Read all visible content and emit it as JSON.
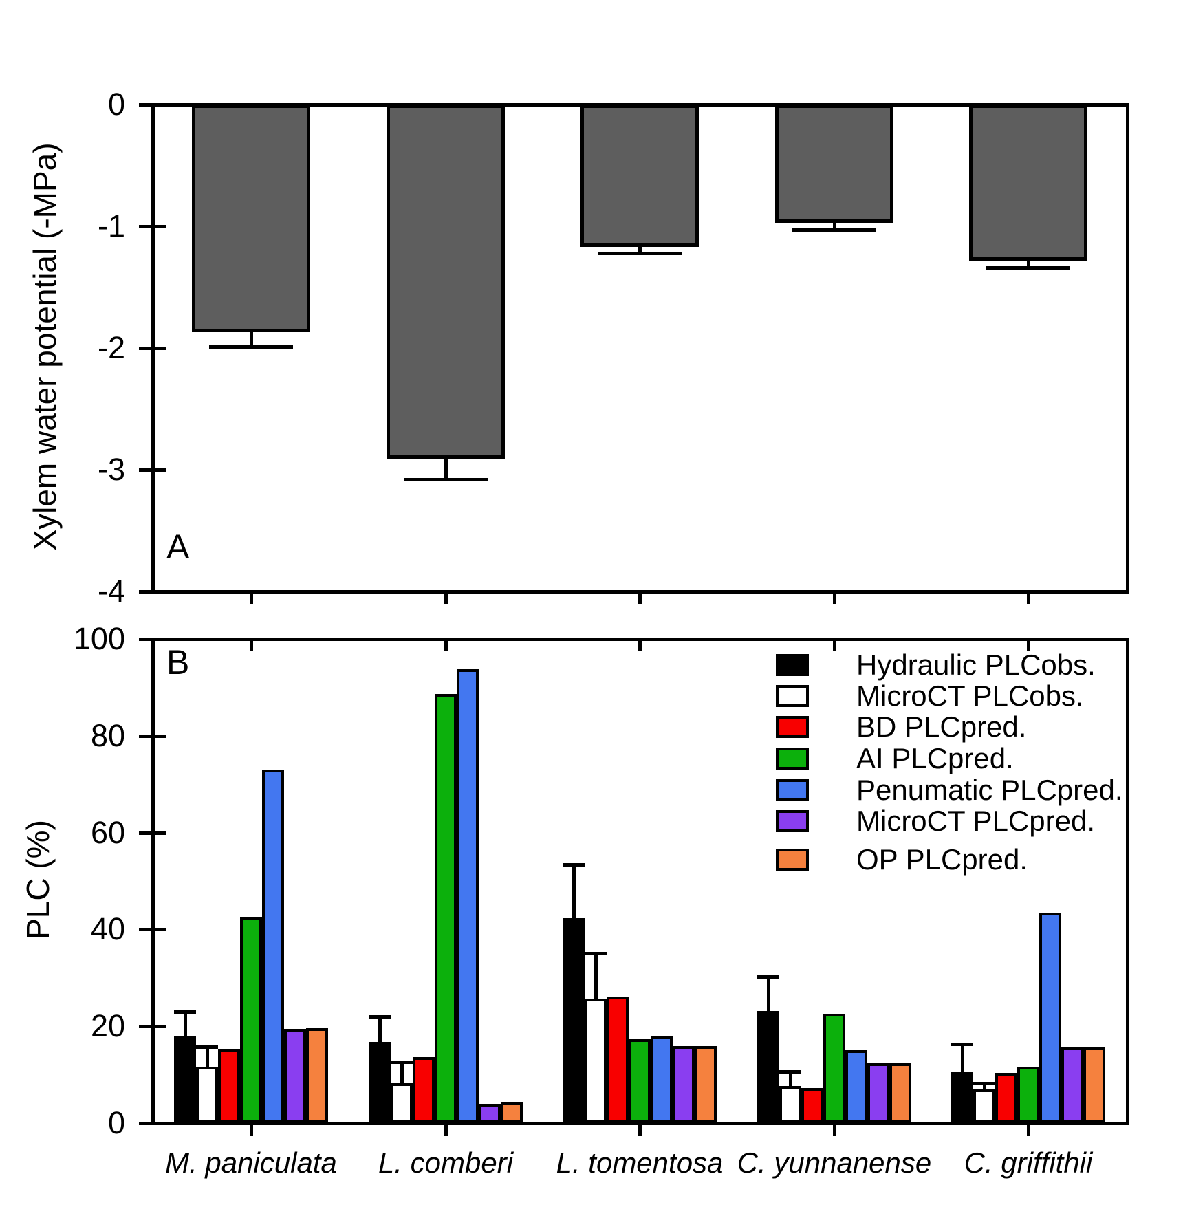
{
  "chart_data": [
    {
      "id": "A",
      "type": "bar",
      "panel_label": "A",
      "ylabel": "Xylem water potential (-MPa)",
      "ylim": [
        0,
        -4
      ],
      "yticks": [
        0,
        -1,
        -2,
        -3,
        -4
      ],
      "grid": false,
      "categories": [
        "M. paniculata",
        "L. comberi",
        "L. tomentosa",
        "C. yunnanense",
        "C. griffithii"
      ],
      "categories_shown": false,
      "series": [
        {
          "name": "Xylem water potential",
          "color": "#5E5E5E",
          "values": [
            -1.87,
            -2.91,
            -1.17,
            -0.97,
            -1.28
          ],
          "errors": [
            0.12,
            0.17,
            0.05,
            0.06,
            0.06
          ],
          "error_direction": "down"
        }
      ]
    },
    {
      "id": "B",
      "type": "grouped-bar",
      "panel_label": "B",
      "ylabel": "PLC (%)",
      "ylim": [
        0,
        100
      ],
      "yticks": [
        0,
        20,
        40,
        60,
        80,
        100
      ],
      "grid": false,
      "legend_position": "top-right",
      "categories": [
        "M. paniculata",
        "L. comberi",
        "L. tomentosa",
        "C. yunnanense",
        "C. griffithii"
      ],
      "categories_shown": true,
      "series": [
        {
          "name": "Hydraulic PLCobs.",
          "color": "#000000",
          "values": [
            18.0,
            16.7,
            42.4,
            23.1,
            10.7
          ],
          "errors": [
            5.0,
            5.3,
            11.0,
            7.2,
            5.7
          ],
          "error_direction": "up"
        },
        {
          "name": "MicroCT PLCobs.",
          "color": "#FFFFFF",
          "values": [
            11.6,
            8.3,
            25.7,
            7.6,
            6.9
          ],
          "errors": [
            4.1,
            4.4,
            9.4,
            3.0,
            1.4
          ],
          "error_direction": "up"
        },
        {
          "name": "BD PLCpred.",
          "color": "#F80000",
          "values": [
            15.4,
            13.7,
            26.1,
            7.3,
            10.3
          ],
          "errors": null
        },
        {
          "name": "AI PLCpred.",
          "color": "#0CB00C",
          "values": [
            42.6,
            88.6,
            17.4,
            22.6,
            11.6
          ],
          "errors": null
        },
        {
          "name": "Penumatic PLCpred.",
          "color": "#4377F0",
          "values": [
            73.0,
            93.7,
            18.1,
            15.0,
            43.5
          ],
          "errors": null
        },
        {
          "name": "MicroCT PLCpred.",
          "color": "#8A3EF0",
          "values": [
            19.5,
            4.0,
            15.9,
            12.4,
            15.6
          ],
          "errors": null
        },
        {
          "name": "OP PLCpred.",
          "color": "#F5813E",
          "values": [
            19.6,
            4.4,
            15.9,
            12.4,
            15.6
          ],
          "errors": null
        }
      ]
    }
  ]
}
